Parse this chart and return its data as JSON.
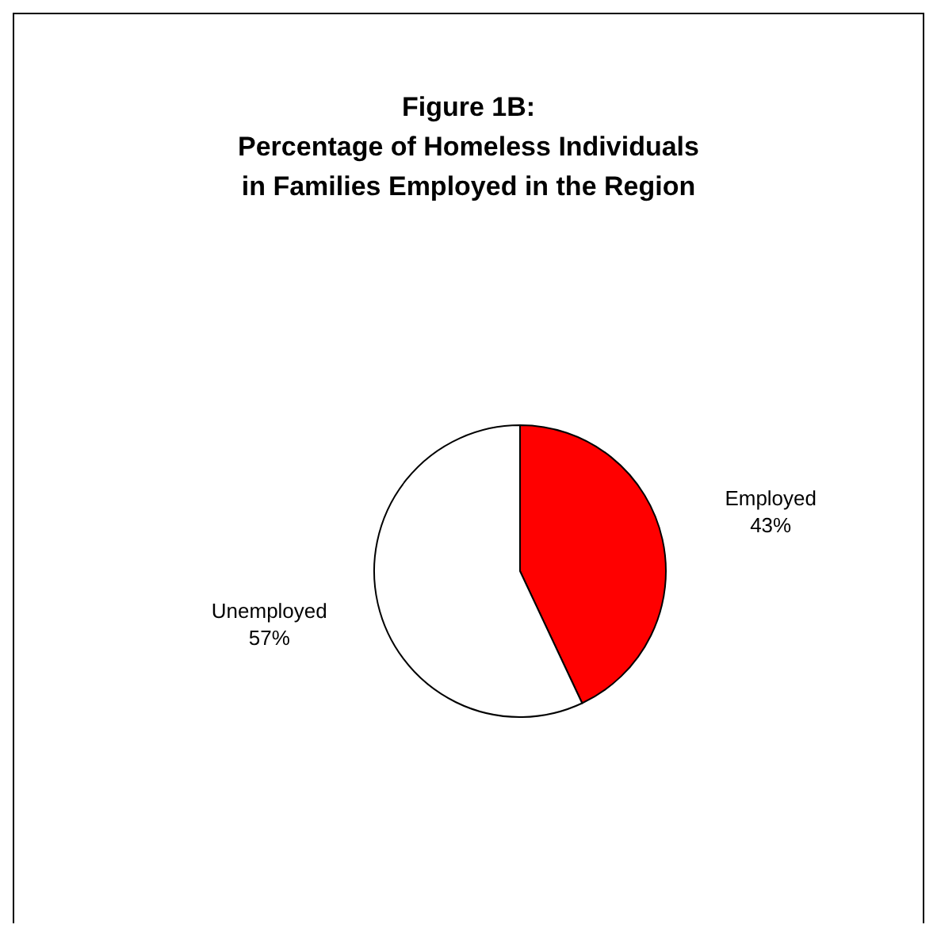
{
  "chart_data": {
    "type": "pie",
    "title": "Figure 1B:\nPercentage of Homeless Individuals\nin Families Employed in the Region",
    "categories": [
      "Employed",
      "Unemployed"
    ],
    "values": [
      43,
      57
    ],
    "colors": [
      "#ff0000",
      "#ffffff"
    ],
    "data_labels": true,
    "value_labels": [
      "43%",
      "57%"
    ]
  }
}
